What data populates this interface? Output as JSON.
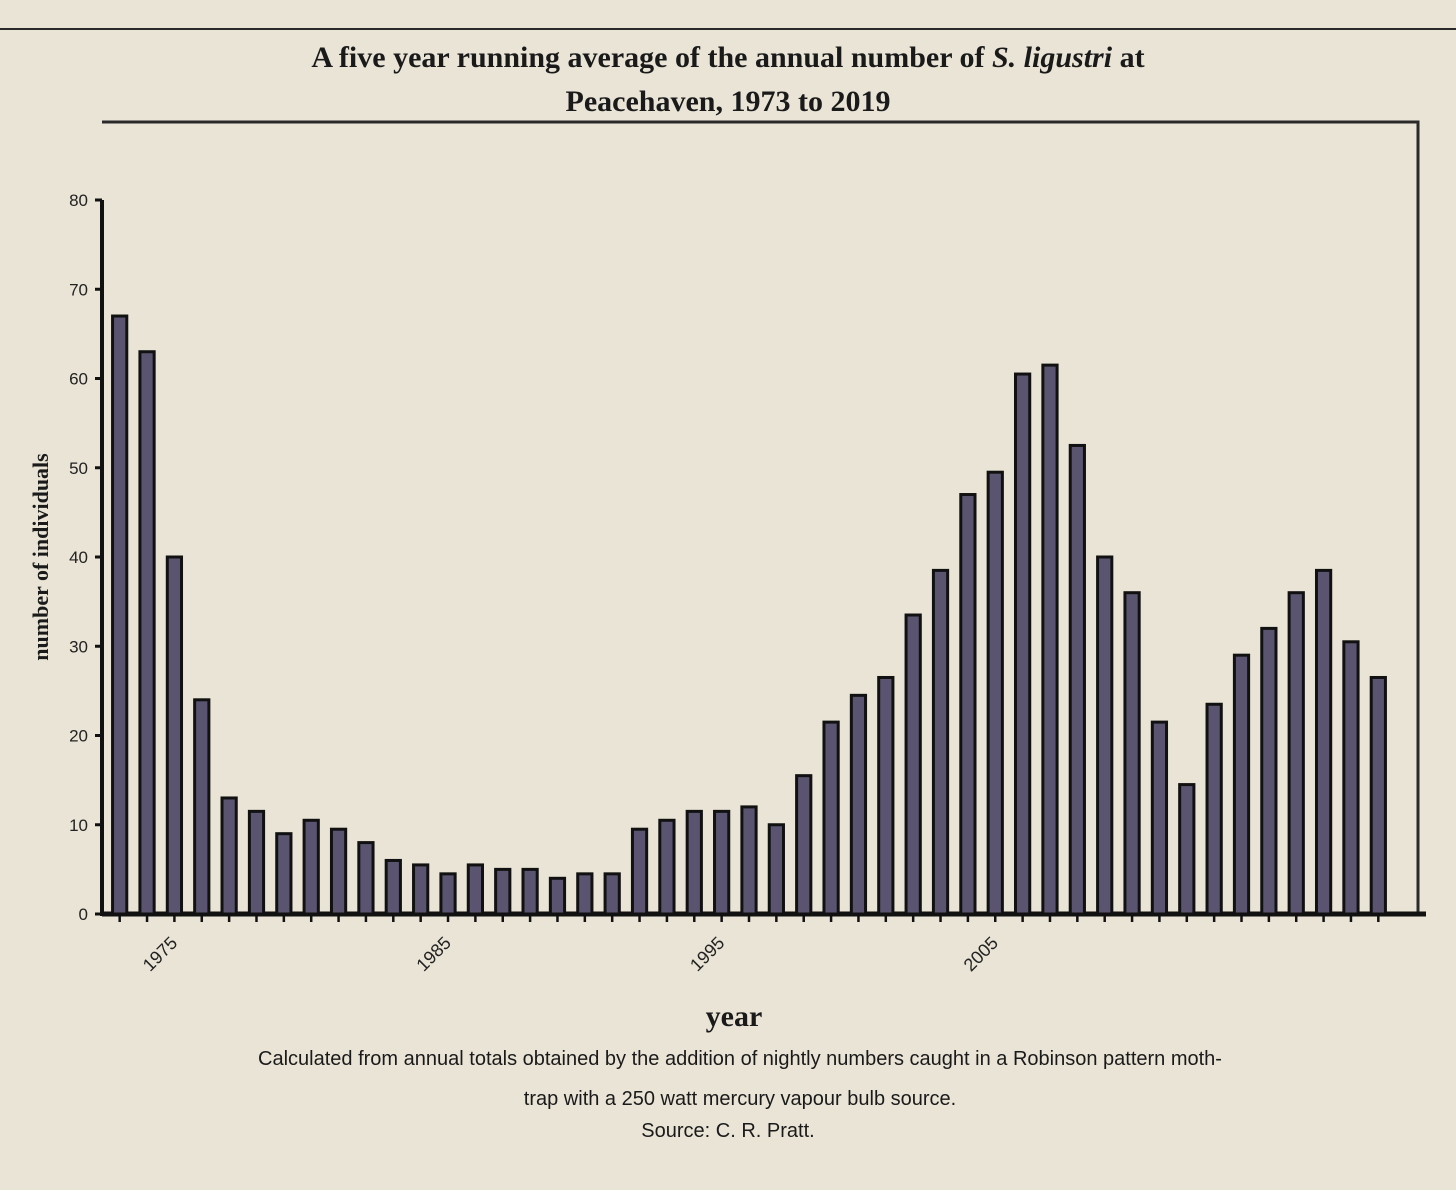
{
  "title": {
    "line1_pre": "A five year running average of the annual number of ",
    "line1_italic": "S. ligustri",
    "line1_post": " at",
    "line2": "Peacehaven, 1973 to 2019"
  },
  "caption": {
    "line1": "Calculated from annual totals obtained by the addition of nightly numbers caught in a Robinson pattern moth-",
    "line2": "trap with a 250 watt mercury vapour bulb source.",
    "source": "Source: C. R. Pratt."
  },
  "colors": {
    "bar_fill": "#5a5470",
    "bar_stroke": "#111111",
    "background": "#e9e4d6"
  },
  "chart_data": {
    "type": "bar",
    "title": "A five year running average of the annual number of S. ligustri at Peacehaven, 1973 to 2019",
    "xlabel": "year",
    "ylabel": "number of individuals",
    "ylim": [
      0,
      80
    ],
    "yticks": [
      0,
      10,
      20,
      30,
      40,
      50,
      60,
      70,
      80
    ],
    "xtick_labels": [
      "1975",
      "1985",
      "1995",
      "2005"
    ],
    "grid": false,
    "legend": "none",
    "categories": [
      1973,
      1974,
      1975,
      1976,
      1977,
      1978,
      1979,
      1980,
      1981,
      1982,
      1983,
      1984,
      1985,
      1986,
      1987,
      1988,
      1989,
      1990,
      1991,
      1992,
      1993,
      1994,
      1995,
      1996,
      1997,
      1998,
      1999,
      2000,
      2001,
      2002,
      2003,
      2004,
      2005,
      2006,
      2007,
      2008,
      2009,
      2010,
      2011,
      2012,
      2013,
      2014,
      2015,
      2016,
      2017,
      2018,
      2019
    ],
    "values": [
      67,
      63,
      40,
      24,
      13,
      11.5,
      9,
      10.5,
      9.5,
      8,
      6,
      5.5,
      4.5,
      5.5,
      5,
      5,
      4,
      4.5,
      4.5,
      9.5,
      10.5,
      11.5,
      11.5,
      12,
      10,
      15.5,
      21.5,
      24.5,
      26.5,
      33.5,
      38.5,
      47,
      49.5,
      60.5,
      61.5,
      52.5,
      40,
      36,
      21.5,
      14.5,
      23.5,
      29,
      32,
      36,
      38.5,
      30.5,
      26.5
    ]
  }
}
